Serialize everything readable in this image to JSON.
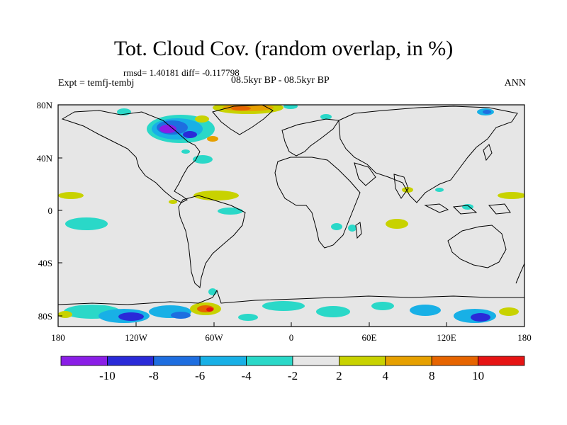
{
  "title": "Tot. Cloud Cov. (random overlap, in %)",
  "stats_line": "rmsd= 1.40181 diff= -0.117798",
  "experiment": "Expt = temfj-tembj",
  "period": "08.5kyr BP - 08.5kyr BP",
  "season": "ANN",
  "lat_ticks": [
    "80N",
    "40N",
    "0",
    "40S",
    "80S"
  ],
  "lon_ticks": [
    "180",
    "120W",
    "60W",
    "0",
    "60E",
    "120E",
    "180"
  ],
  "colorbar": {
    "labels": [
      "-10",
      "-8",
      "-6",
      "-4",
      "-2",
      "2",
      "4",
      "8",
      "10"
    ],
    "colors": [
      "#8a1ee6",
      "#2a2ad8",
      "#1e6ee0",
      "#18b0e6",
      "#2ad8c8",
      "#e6e6e6",
      "#c8d200",
      "#e6a000",
      "#e66400",
      "#e61414"
    ]
  },
  "map_background": "#e6e6e6"
}
